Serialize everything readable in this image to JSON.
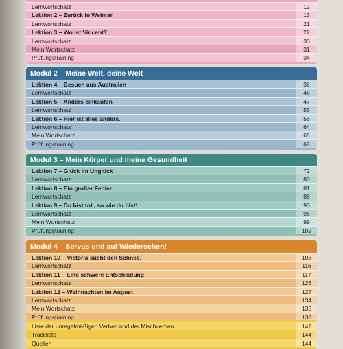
{
  "sections": [
    {
      "rows": [
        {
          "label": "Lernwortschatz",
          "page": 12
        },
        {
          "label": "Lektion 2 – Zurück in Weimar",
          "page": 13
        },
        {
          "label": "Lernwortschatz",
          "page": 21
        },
        {
          "label": "Lektion 3 – Wo ist Vincent?",
          "page": 22
        },
        {
          "label": "Lernwortschatz",
          "page": 30
        },
        {
          "label": "Mein Wortschatz",
          "page": 31
        },
        {
          "label": "Prüfungstraining",
          "page": 34
        }
      ]
    },
    {
      "title": "Modul 2 – Meine Welt, deine Welt",
      "rows": [
        {
          "label": "Lektion 4 – Besuch aus Australien",
          "page": 38
        },
        {
          "label": "Lernwortschatz",
          "page": 46
        },
        {
          "label": "Lektion 5 – Anders einkaufen",
          "page": 47
        },
        {
          "label": "Lernwortschatz",
          "page": 55
        },
        {
          "label": "Lektion 6 – Hier ist alles anders.",
          "page": 56
        },
        {
          "label": "Lernwortschatz",
          "page": 64
        },
        {
          "label": "Mein Wortschatz",
          "page": 65
        },
        {
          "label": "Prüfungstraining",
          "page": 68
        }
      ]
    },
    {
      "title": "Modul 3 – Mein Körper und meine Gesundheit",
      "rows": [
        {
          "label": "Lektion 7 – Glück im Unglück",
          "page": 72
        },
        {
          "label": "Lernwortschatz",
          "page": 80
        },
        {
          "label": "Lektion 8 – Ein großer Fehler",
          "page": 81
        },
        {
          "label": "Lernwortschatz",
          "page": 89
        },
        {
          "label": "Lektion 9 – Du bist toll, so wie du bist!",
          "page": 90
        },
        {
          "label": "Lernwortschatz",
          "page": 98
        },
        {
          "label": "Mein Wortschatz",
          "page": 99
        },
        {
          "label": "Prüfungstraining",
          "page": 102
        }
      ]
    },
    {
      "title": "Modul 4 – Servus und auf Wiedersehen!",
      "rows": [
        {
          "label": "Lektion 10 – Victoria sucht den Schnee.",
          "page": 106
        },
        {
          "label": "Lernwortschatz",
          "page": 116
        },
        {
          "label": "Lektion 11 – Eine schwere Entscheidung",
          "page": 117
        },
        {
          "label": "Lernwortschatz",
          "page": 126
        },
        {
          "label": "Lektion 12 – Weihnachten im August",
          "page": 127
        },
        {
          "label": "Lernwortschatz",
          "page": 134
        },
        {
          "label": "Mein Wortschatz",
          "page": 135
        },
        {
          "label": "Prüfungstraining",
          "page": 138
        }
      ]
    },
    {
      "rows": [
        {
          "label": "Liste der unregelmäßigen Verben und der Mischverben",
          "page": 142
        },
        {
          "label": "Trackliste",
          "page": 144
        },
        {
          "label": "Quellen",
          "page": 144
        }
      ]
    }
  ]
}
